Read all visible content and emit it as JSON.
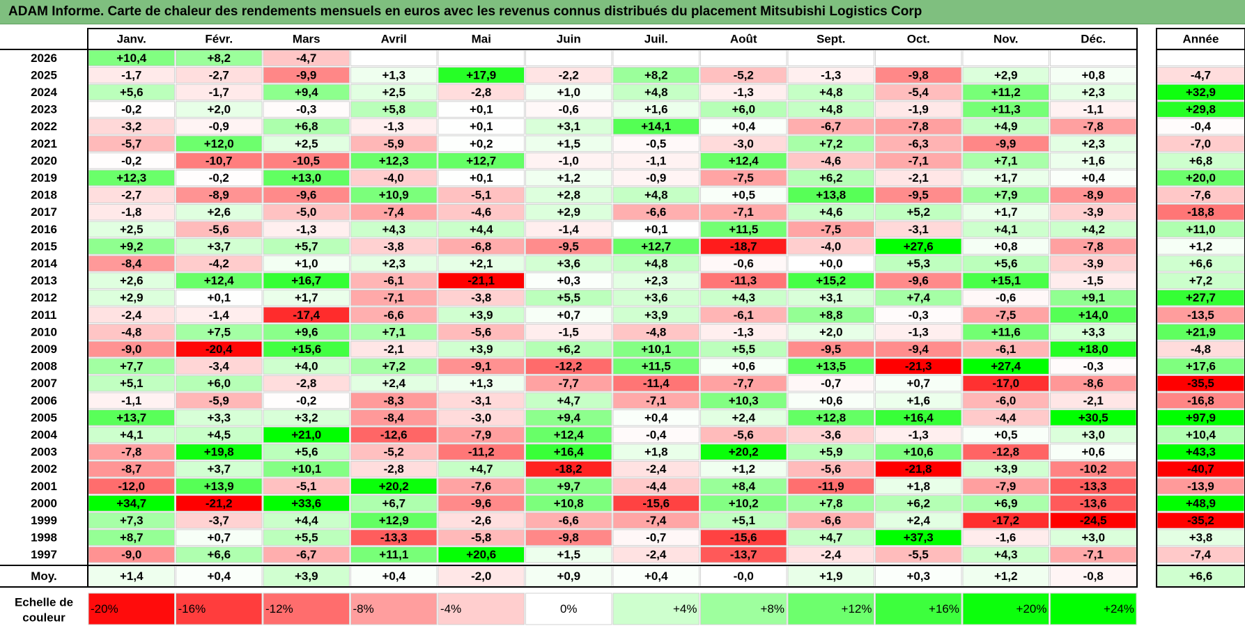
{
  "title": "ADAM Informe. Carte de chaleur des rendements mensuels en euros avec les revenus connus distribués du placement Mitsubishi Logistics Corp",
  "chart_data": {
    "type": "heatmap",
    "title": "ADAM Informe. Carte de chaleur des rendements mensuels en euros avec les revenus connus distribués du placement Mitsubishi Logistics Corp",
    "months": [
      "Janv.",
      "Févr.",
      "Mars",
      "Avril",
      "Mai",
      "Juin",
      "Juil.",
      "Août",
      "Sept.",
      "Oct.",
      "Nov.",
      "Déc."
    ],
    "annual_header": "Année",
    "rows": [
      {
        "year": "2026",
        "values": [
          "+10,4",
          "+8,2",
          "-4,7",
          "",
          "",
          "",
          "",
          "",
          "",
          "",
          "",
          ""
        ],
        "annual": ""
      },
      {
        "year": "2025",
        "values": [
          "-1,7",
          "-2,7",
          "-9,9",
          "+1,3",
          "+17,9",
          "-2,2",
          "+8,2",
          "-5,2",
          "-1,3",
          "-9,8",
          "+2,9",
          "+0,8"
        ],
        "annual": "-4,7"
      },
      {
        "year": "2024",
        "values": [
          "+5,6",
          "-1,7",
          "+9,4",
          "+2,5",
          "-2,8",
          "+1,0",
          "+4,8",
          "-1,3",
          "+4,8",
          "-5,4",
          "+11,2",
          "+2,3"
        ],
        "annual": "+32,9"
      },
      {
        "year": "2023",
        "values": [
          "-0,2",
          "+2,0",
          "-0,3",
          "+5,8",
          "+0,1",
          "-0,6",
          "+1,6",
          "+6,0",
          "+4,8",
          "-1,9",
          "+11,3",
          "-1,1"
        ],
        "annual": "+29,8"
      },
      {
        "year": "2022",
        "values": [
          "-3,2",
          "-0,9",
          "+6,8",
          "-1,3",
          "+0,1",
          "+3,1",
          "+14,1",
          "+0,4",
          "-6,7",
          "-7,8",
          "+4,9",
          "-7,8"
        ],
        "annual": "-0,4"
      },
      {
        "year": "2021",
        "values": [
          "-5,7",
          "+12,0",
          "+2,5",
          "-5,9",
          "+0,2",
          "+1,5",
          "-0,5",
          "-3,0",
          "+7,2",
          "-6,3",
          "-9,9",
          "+2,3"
        ],
        "annual": "-7,0"
      },
      {
        "year": "2020",
        "values": [
          "-0,2",
          "-10,7",
          "-10,5",
          "+12,3",
          "+12,7",
          "-1,0",
          "-1,1",
          "+12,4",
          "-4,6",
          "-7,1",
          "+7,1",
          "+1,6"
        ],
        "annual": "+6,8"
      },
      {
        "year": "2019",
        "values": [
          "+12,3",
          "-0,2",
          "+13,0",
          "-4,0",
          "+0,1",
          "+1,2",
          "-0,9",
          "-7,5",
          "+6,2",
          "-2,1",
          "+1,7",
          "+0,4"
        ],
        "annual": "+20,0"
      },
      {
        "year": "2018",
        "values": [
          "-2,7",
          "-8,9",
          "-9,6",
          "+10,9",
          "-5,1",
          "+2,8",
          "+4,8",
          "+0,5",
          "+13,8",
          "-9,5",
          "+7,9",
          "-8,9"
        ],
        "annual": "-7,6"
      },
      {
        "year": "2017",
        "values": [
          "-1,8",
          "+2,6",
          "-5,0",
          "-7,4",
          "-4,6",
          "+2,9",
          "-6,6",
          "-7,1",
          "+4,6",
          "+5,2",
          "+1,7",
          "-3,9"
        ],
        "annual": "-18,8"
      },
      {
        "year": "2016",
        "values": [
          "+2,5",
          "-5,6",
          "-1,3",
          "+4,3",
          "+4,4",
          "-1,4",
          "+0,1",
          "+11,5",
          "-7,5",
          "-3,1",
          "+4,1",
          "+4,2"
        ],
        "annual": "+11,0"
      },
      {
        "year": "2015",
        "values": [
          "+9,2",
          "+3,7",
          "+5,7",
          "-3,8",
          "-6,8",
          "-9,5",
          "+12,7",
          "-18,7",
          "-4,0",
          "+27,6",
          "+0,8",
          "-7,8"
        ],
        "annual": "+1,2"
      },
      {
        "year": "2014",
        "values": [
          "-8,4",
          "-4,2",
          "+1,0",
          "+2,3",
          "+2,1",
          "+3,6",
          "+4,8",
          "-0,6",
          "+0,0",
          "+5,3",
          "+5,6",
          "-3,9"
        ],
        "annual": "+6,6"
      },
      {
        "year": "2013",
        "values": [
          "+2,6",
          "+12,4",
          "+16,7",
          "-6,1",
          "-21,1",
          "+0,3",
          "+2,3",
          "-11,3",
          "+15,2",
          "-9,6",
          "+15,1",
          "-1,5"
        ],
        "annual": "+7,2"
      },
      {
        "year": "2012",
        "values": [
          "+2,9",
          "+0,1",
          "+1,7",
          "-7,1",
          "-3,8",
          "+5,5",
          "+3,6",
          "+4,3",
          "+3,1",
          "+7,4",
          "-0,6",
          "+9,1"
        ],
        "annual": "+27,7"
      },
      {
        "year": "2011",
        "values": [
          "-2,4",
          "-1,4",
          "-17,4",
          "-6,6",
          "+3,9",
          "+0,7",
          "+3,9",
          "-6,1",
          "+8,8",
          "-0,3",
          "-7,5",
          "+14,0"
        ],
        "annual": "-13,5"
      },
      {
        "year": "2010",
        "values": [
          "-4,8",
          "+7,5",
          "+9,6",
          "+7,1",
          "-5,6",
          "-1,5",
          "-4,8",
          "-1,3",
          "+2,0",
          "-1,3",
          "+11,6",
          "+3,3"
        ],
        "annual": "+21,9"
      },
      {
        "year": "2009",
        "values": [
          "-9,0",
          "-20,4",
          "+15,6",
          "-2,1",
          "+3,9",
          "+6,2",
          "+10,1",
          "+5,5",
          "-9,5",
          "-9,4",
          "-6,1",
          "+18,0"
        ],
        "annual": "-4,8"
      },
      {
        "year": "2008",
        "values": [
          "+7,7",
          "-3,4",
          "+4,0",
          "+7,2",
          "-9,1",
          "-12,2",
          "+11,5",
          "+0,6",
          "+13,5",
          "-21,3",
          "+27,4",
          "-0,3"
        ],
        "annual": "+17,6"
      },
      {
        "year": "2007",
        "values": [
          "+5,1",
          "+6,0",
          "-2,8",
          "+2,4",
          "+1,3",
          "-7,7",
          "-11,4",
          "-7,7",
          "-0,7",
          "+0,7",
          "-17,0",
          "-8,6"
        ],
        "annual": "-35,5"
      },
      {
        "year": "2006",
        "values": [
          "-1,1",
          "-5,9",
          "-0,2",
          "-8,3",
          "-3,1",
          "+4,7",
          "-7,1",
          "+10,3",
          "+0,6",
          "+1,6",
          "-6,0",
          "-2,1"
        ],
        "annual": "-16,8"
      },
      {
        "year": "2005",
        "values": [
          "+13,7",
          "+3,3",
          "+3,2",
          "-8,4",
          "-3,0",
          "+9,4",
          "+0,4",
          "+2,4",
          "+12,8",
          "+16,4",
          "-4,4",
          "+30,5"
        ],
        "annual": "+97,9"
      },
      {
        "year": "2004",
        "values": [
          "+4,1",
          "+4,5",
          "+21,0",
          "-12,6",
          "-7,9",
          "+12,4",
          "-0,4",
          "-5,6",
          "-3,6",
          "-1,3",
          "+0,5",
          "+3,0"
        ],
        "annual": "+10,4"
      },
      {
        "year": "2003",
        "values": [
          "-7,8",
          "+19,8",
          "+5,6",
          "-5,2",
          "-11,2",
          "+16,4",
          "+1,8",
          "+20,2",
          "+5,9",
          "+10,6",
          "-12,8",
          "+0,6"
        ],
        "annual": "+43,3"
      },
      {
        "year": "2002",
        "values": [
          "-8,7",
          "+3,7",
          "+10,1",
          "-2,8",
          "+4,7",
          "-18,2",
          "-2,4",
          "+1,2",
          "-5,6",
          "-21,8",
          "+3,9",
          "-10,2"
        ],
        "annual": "-40,7"
      },
      {
        "year": "2001",
        "values": [
          "-12,0",
          "+13,9",
          "-5,1",
          "+20,2",
          "-7,6",
          "+9,7",
          "-4,4",
          "+8,4",
          "-11,9",
          "+1,8",
          "-7,9",
          "-13,3"
        ],
        "annual": "-13,9"
      },
      {
        "year": "2000",
        "values": [
          "+34,7",
          "-21,2",
          "+33,6",
          "+6,7",
          "-9,6",
          "+10,8",
          "-15,6",
          "+10,2",
          "+7,8",
          "+6,2",
          "+6,9",
          "-13,6"
        ],
        "annual": "+48,9"
      },
      {
        "year": "1999",
        "values": [
          "+7,3",
          "-3,7",
          "+4,4",
          "+12,9",
          "-2,6",
          "-6,6",
          "-7,4",
          "+5,1",
          "-6,6",
          "+2,4",
          "-17,2",
          "-24,5"
        ],
        "annual": "-35,2"
      },
      {
        "year": "1998",
        "values": [
          "+8,7",
          "+0,7",
          "+5,5",
          "-13,3",
          "-5,8",
          "-9,8",
          "-0,7",
          "-15,6",
          "+4,7",
          "+37,3",
          "-1,6",
          "+3,0"
        ],
        "annual": "+3,8"
      },
      {
        "year": "1997",
        "values": [
          "-9,0",
          "+6,6",
          "-6,7",
          "+11,1",
          "+20,6",
          "+1,5",
          "-2,4",
          "-13,7",
          "-2,4",
          "-5,5",
          "+4,3",
          "-7,1"
        ],
        "annual": "-7,4"
      }
    ],
    "average": {
      "label": "Moy.",
      "values": [
        "+1,4",
        "+0,4",
        "+3,9",
        "+0,4",
        "-2,0",
        "+0,9",
        "+0,4",
        "-0,0",
        "+1,9",
        "+0,3",
        "+1,2",
        "-0,8"
      ],
      "annual": "+6,6"
    },
    "color_scale": {
      "label_line1": "Echelle de",
      "label_line2": "couleur",
      "steps": [
        {
          "label": "-20%",
          "value": -20
        },
        {
          "label": "-16%",
          "value": -16
        },
        {
          "label": "-12%",
          "value": -12
        },
        {
          "label": "-8%",
          "value": -8
        },
        {
          "label": "-4%",
          "value": -4
        },
        {
          "label": "0%",
          "value": 0
        },
        {
          "label": "+4%",
          "value": 4
        },
        {
          "label": "+8%",
          "value": 8
        },
        {
          "label": "+12%",
          "value": 12
        },
        {
          "label": "+16%",
          "value": 16
        },
        {
          "label": "+20%",
          "value": 20
        },
        {
          "label": "+24%",
          "value": 24
        }
      ]
    },
    "colors": {
      "strong_red": "#ff0000",
      "strong_green": "#00ff00",
      "neutral": "#ffffff",
      "title_bar": "#7fbf7f"
    }
  }
}
